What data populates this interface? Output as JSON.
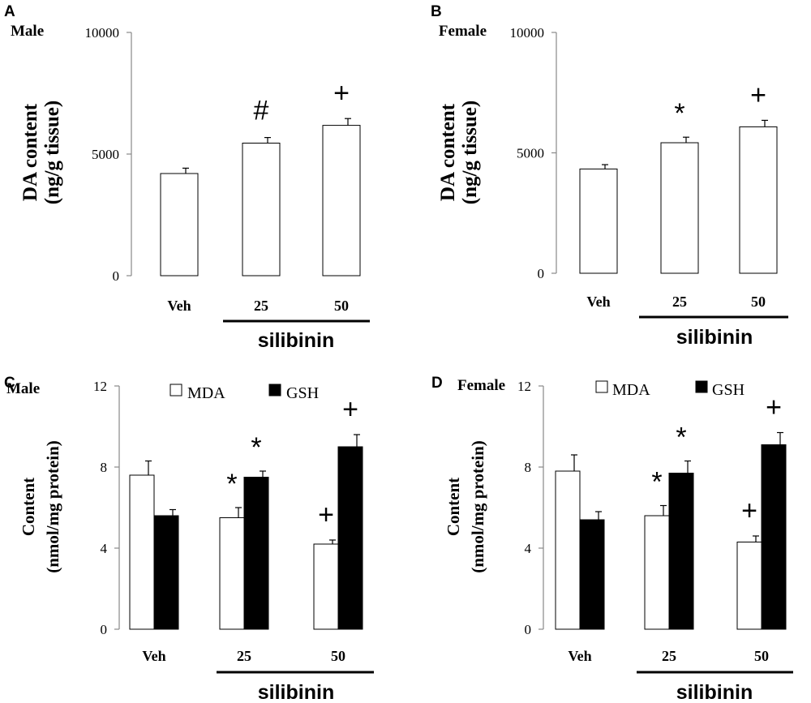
{
  "chart_data": [
    {
      "panel": "A",
      "subtitle": "Male",
      "type": "bar",
      "ylabel_line1": "DA content",
      "ylabel_line2": "(ng/g tissue)",
      "ylim": [
        0,
        10000
      ],
      "yticks": [
        0,
        5000,
        10000
      ],
      "categories": [
        "Veh",
        "25",
        "50"
      ],
      "group_label": "silibinin",
      "series": [
        {
          "name": "DA",
          "values": [
            4200,
            5450,
            6180
          ],
          "errors": [
            220,
            230,
            280
          ],
          "color": "#ffffff"
        }
      ],
      "annotations": [
        {
          "category": 1,
          "text": "#"
        },
        {
          "category": 2,
          "text": "+"
        }
      ]
    },
    {
      "panel": "B",
      "subtitle": "Female",
      "type": "bar",
      "ylabel_line1": "DA content",
      "ylabel_line2": "(ng/g tissue)",
      "ylim": [
        0,
        10000
      ],
      "yticks": [
        0,
        5000,
        10000
      ],
      "categories": [
        "Veh",
        "25",
        "50"
      ],
      "group_label": "silibinin",
      "series": [
        {
          "name": "DA",
          "values": [
            4330,
            5420,
            6080
          ],
          "errors": [
            180,
            230,
            270
          ],
          "color": "#ffffff"
        }
      ],
      "annotations": [
        {
          "category": 1,
          "text": "*"
        },
        {
          "category": 2,
          "text": "+"
        }
      ]
    },
    {
      "panel": "C",
      "subtitle": "Male",
      "type": "bar",
      "ylabel_line1": "Content",
      "ylabel_line2": "(nmol/mg protein)",
      "ylim": [
        0,
        12
      ],
      "yticks": [
        0,
        4,
        8,
        12
      ],
      "categories": [
        "Veh",
        "25",
        "50"
      ],
      "group_label": "silibinin",
      "series": [
        {
          "name": "MDA",
          "values": [
            7.6,
            5.5,
            4.2
          ],
          "errors": [
            0.7,
            0.5,
            0.2
          ],
          "color": "#ffffff"
        },
        {
          "name": "GSH",
          "values": [
            5.6,
            7.5,
            9.0
          ],
          "errors": [
            0.3,
            0.3,
            0.6
          ],
          "color": "#000000"
        }
      ],
      "annotations": [
        {
          "category": 1,
          "series": 0,
          "text": "*"
        },
        {
          "category": 1,
          "series": 1,
          "text": "*"
        },
        {
          "category": 2,
          "series": 0,
          "text": "+"
        },
        {
          "category": 2,
          "series": 1,
          "text": "+"
        }
      ]
    },
    {
      "panel": "D",
      "subtitle": "Female",
      "type": "bar",
      "ylabel_line1": "Content",
      "ylabel_line2": "(nmol/mg protein)",
      "ylim": [
        0,
        12
      ],
      "yticks": [
        0,
        4,
        8,
        12
      ],
      "categories": [
        "Veh",
        "25",
        "50"
      ],
      "group_label": "silibinin",
      "series": [
        {
          "name": "MDA",
          "values": [
            7.8,
            5.6,
            4.3
          ],
          "errors": [
            0.8,
            0.5,
            0.3
          ],
          "color": "#ffffff"
        },
        {
          "name": "GSH",
          "values": [
            5.4,
            7.7,
            9.1
          ],
          "errors": [
            0.4,
            0.6,
            0.6
          ],
          "color": "#000000"
        }
      ],
      "annotations": [
        {
          "category": 1,
          "series": 0,
          "text": "*"
        },
        {
          "category": 1,
          "series": 1,
          "text": "*"
        },
        {
          "category": 2,
          "series": 0,
          "text": "+"
        },
        {
          "category": 2,
          "series": 1,
          "text": "+"
        }
      ]
    }
  ]
}
